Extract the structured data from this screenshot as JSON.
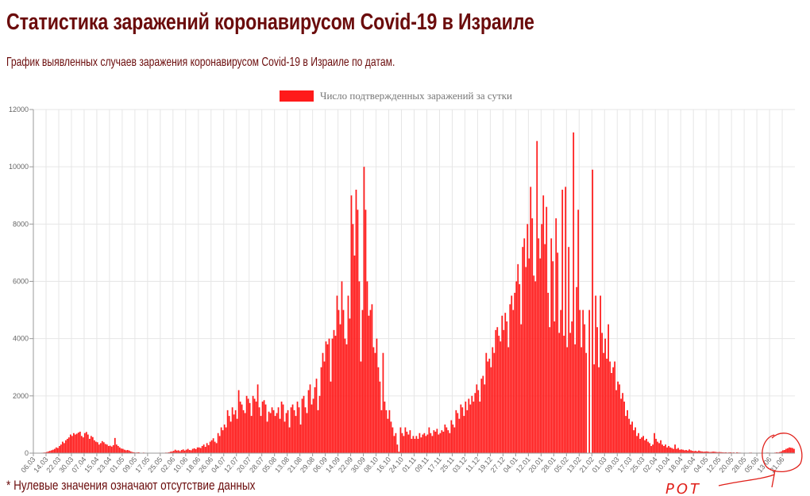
{
  "header": {
    "title": "Статистика заражений коронавирусом Covid-19 в Израиле",
    "subtitle": "График выявленных случаев заражения коронавирусом Covid-19 в Израиле по датам."
  },
  "footnote": "* Нулевые значения означают отсутствие данных",
  "annotation": {
    "text": "РОТ",
    "color": "#e0201a",
    "icon": "hand-drawn-circle-and-arrow"
  },
  "chart_data": {
    "type": "bar",
    "title": "",
    "xlabel": "",
    "ylabel": "",
    "ylim": [
      0,
      12000
    ],
    "yticks": [
      0,
      2000,
      4000,
      6000,
      8000,
      10000,
      12000
    ],
    "grid": true,
    "legend_placement": "top",
    "bar_color": "#ff1a1a",
    "xtick_labels": [
      "06.03",
      "14.03",
      "22.03",
      "30.03",
      "07.04",
      "15.04",
      "23.04",
      "01.05",
      "09.05",
      "17.05",
      "25.05",
      "02.06",
      "10.06",
      "18.06",
      "26.06",
      "04.07",
      "12.07",
      "20.07",
      "28.07",
      "05.08",
      "13.08",
      "21.08",
      "29.08",
      "06.09",
      "14.09",
      "22.09",
      "30.09",
      "08.10",
      "16.10",
      "24.10",
      "01.11",
      "09.11",
      "17.11",
      "25.11",
      "03.12",
      "11.12",
      "19.12",
      "27.12",
      "04.01",
      "12.01",
      "20.01",
      "28.01",
      "05.02",
      "13.02",
      "21.02",
      "01.03",
      "09.03",
      "17.03",
      "25.03",
      "02.04",
      "10.04",
      "18.04",
      "26.04",
      "04.05",
      "12.05",
      "20.05",
      "28.05",
      "05.06",
      "13.06",
      "21.06"
    ],
    "xtick_interval_days": 8,
    "series": [
      {
        "name": "Число подтвержденных заражений за сутки",
        "values": [
          2,
          3,
          5,
          5,
          10,
          15,
          20,
          25,
          40,
          60,
          80,
          100,
          120,
          150,
          200,
          180,
          250,
          300,
          400,
          350,
          450,
          500,
          550,
          650,
          600,
          700,
          650,
          680,
          720,
          750,
          600,
          550,
          700,
          740,
          650,
          500,
          600,
          560,
          450,
          400,
          380,
          300,
          350,
          420,
          380,
          320,
          300,
          250,
          260,
          230,
          280,
          530,
          300,
          250,
          200,
          160,
          150,
          120,
          100,
          110,
          90,
          60,
          40,
          30,
          20,
          25,
          30,
          15,
          10,
          20,
          15,
          10,
          10,
          8,
          12,
          10,
          5,
          8,
          10,
          15,
          10,
          15,
          12,
          20,
          20,
          30,
          50,
          60,
          80,
          120,
          90,
          100,
          70,
          110,
          130,
          90,
          120,
          150,
          110,
          100,
          150,
          170,
          140,
          200,
          200,
          180,
          250,
          300,
          220,
          350,
          280,
          400,
          450,
          520,
          400,
          350,
          700,
          600,
          900,
          800,
          1000,
          900,
          1500,
          1300,
          1100,
          1600,
          1350,
          1500,
          1200,
          2200,
          1800,
          1700,
          1500,
          1400,
          2000,
          1900,
          1750,
          1300,
          2000,
          1900,
          1800,
          2400,
          1600,
          1300,
          1800,
          1850,
          1700,
          1100,
          1450,
          1400,
          1600,
          1500,
          1300,
          1400,
          1600,
          1200,
          1800,
          1700,
          1100,
          1400,
          1500,
          900,
          1600,
          1700,
          1500,
          1300,
          1800,
          1600,
          1000,
          1900,
          2000,
          1600,
          1400,
          2200,
          2400,
          1700,
          1900,
          2300,
          2600,
          1500,
          2000,
          3000,
          3500,
          3200,
          3900,
          3800,
          4000,
          2500,
          4000,
          4300,
          4100,
          5500,
          5000,
          4500,
          6000,
          5000,
          4000,
          3800,
          5500,
          4700,
          9000,
          8000,
          6900,
          9200,
          8500,
          6000,
          3200,
          5000,
          10000,
          8500,
          6000,
          4800,
          5000,
          5200,
          3700,
          3500,
          4000,
          3000,
          2500,
          1500,
          3500,
          1800,
          1500,
          1200,
          1500,
          1100,
          900,
          600,
          700,
          300,
          50,
          900,
          700,
          600,
          900,
          750,
          650,
          800,
          500,
          600,
          500,
          600,
          500,
          700,
          550,
          650,
          700,
          600,
          650,
          900,
          700,
          600,
          800,
          750,
          850,
          650,
          700,
          800,
          750,
          1000,
          900,
          800,
          700,
          1150,
          1000,
          900,
          1500,
          1400,
          1200,
          1700,
          1600,
          1300,
          1800,
          1500,
          1900,
          1700,
          2000,
          1800,
          2100,
          2400,
          2200,
          1800,
          2600,
          2700,
          2400,
          3500,
          3200,
          3300,
          3000,
          3700,
          3500,
          4300,
          4400,
          4100,
          3900,
          4800,
          4300,
          4900,
          4600,
          3700,
          5200,
          5500,
          5000,
          5600,
          6000,
          6600,
          5900,
          4500,
          7200,
          7500,
          6500,
          8000,
          6800,
          9300,
          8200,
          6200,
          6000,
          10900,
          7500,
          6800,
          8000,
          9000,
          7300,
          8600,
          5600,
          4400,
          7500,
          6700,
          4600,
          8200,
          7000,
          4200,
          5000,
          9200,
          4100,
          9300,
          3700,
          7200,
          4200,
          4600,
          11200,
          3800,
          5800,
          8500,
          5000,
          3700,
          5000,
          4500,
          3500,
          0,
          5000,
          0,
          9900,
          3100,
          5500,
          4400,
          3000,
          5500,
          4200,
          3500,
          4000,
          3300,
          4500,
          3200,
          2800,
          3000,
          3200,
          2200,
          2500,
          2400,
          1900,
          2100,
          1800,
          1300,
          1500,
          1200,
          1000,
          1100,
          800,
          900,
          600,
          700,
          500,
          550,
          600,
          450,
          500,
          400,
          350,
          250,
          300,
          700,
          500,
          400,
          350,
          450,
          300,
          250,
          300,
          200,
          250,
          200,
          180,
          150,
          300,
          150,
          180,
          120,
          130,
          120,
          100,
          110,
          90,
          130,
          100,
          80,
          70,
          80,
          60,
          90,
          70,
          60,
          50,
          55,
          60,
          50,
          40,
          45,
          55,
          50,
          40,
          35,
          40,
          35,
          30,
          25,
          30,
          20,
          25,
          30,
          20,
          25,
          15,
          30,
          20,
          18,
          15,
          12,
          15,
          10,
          12,
          18,
          20,
          10,
          8,
          12,
          10,
          15,
          12,
          8,
          10,
          15,
          20,
          18,
          15,
          12,
          10,
          20,
          30,
          25,
          40,
          60,
          100,
          110,
          150,
          170,
          200,
          190,
          180,
          150
        ]
      }
    ]
  }
}
